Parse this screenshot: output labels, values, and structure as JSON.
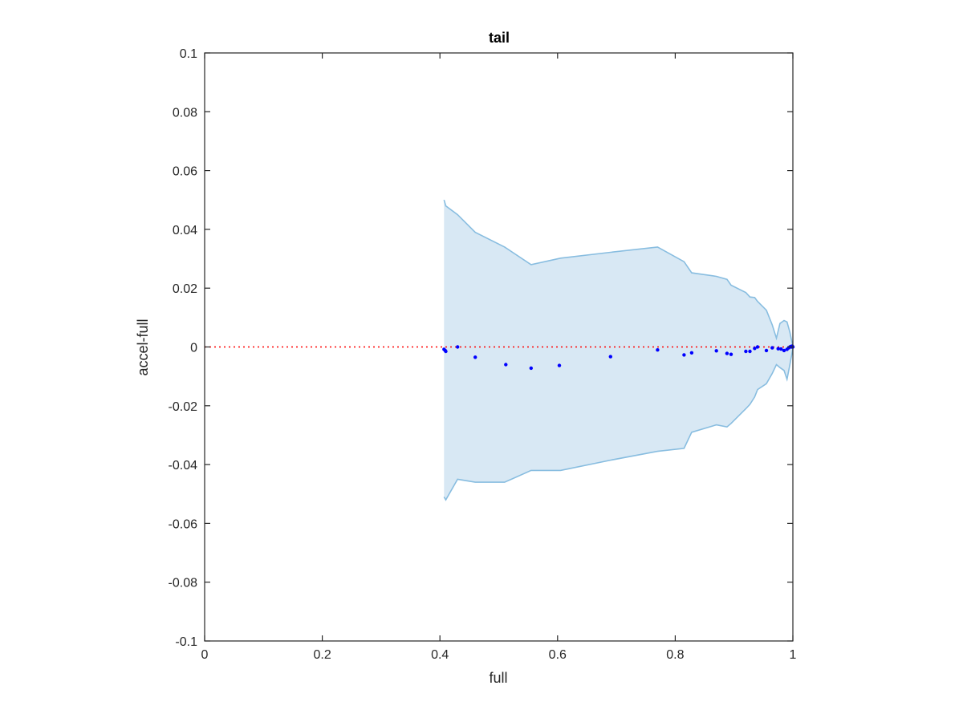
{
  "chart_data": {
    "type": "scatter",
    "title": "tail",
    "xlabel": "full",
    "ylabel": "accel-full",
    "xlim": [
      0,
      1
    ],
    "ylim": [
      -0.1,
      0.1
    ],
    "xticks": [
      0,
      0.2,
      0.4,
      0.6,
      0.8,
      1
    ],
    "xtick_labels": [
      "0",
      "0.2",
      "0.4",
      "0.6",
      "0.8",
      "1"
    ],
    "yticks": [
      -0.1,
      -0.08,
      -0.06,
      -0.04,
      -0.02,
      0,
      0.02,
      0.04,
      0.06,
      0.08,
      0.1
    ],
    "ytick_labels": [
      "-0.1",
      "-0.08",
      "-0.06",
      "-0.04",
      "-0.02",
      "0",
      "0.02",
      "0.04",
      "0.06",
      "0.08",
      "0.1"
    ],
    "grid": false,
    "colors": {
      "points": "#0000ff",
      "band_fill": "#d8e8f4",
      "band_edge": "#88bde0",
      "zero_line": "#ff0000",
      "axes": "#262626"
    },
    "reference_line": {
      "y": 0,
      "style": "dotted"
    },
    "band": {
      "x": [
        0.407,
        0.41,
        0.43,
        0.46,
        0.51,
        0.555,
        0.605,
        0.69,
        0.77,
        0.815,
        0.828,
        0.87,
        0.888,
        0.895,
        0.92,
        0.927,
        0.935,
        0.94,
        0.955,
        0.965,
        0.972,
        0.978,
        0.985,
        0.99,
        0.995,
        1.0
      ],
      "upper": [
        0.05,
        0.048,
        0.045,
        0.039,
        0.034,
        0.028,
        0.0302,
        0.0322,
        0.034,
        0.029,
        0.0252,
        0.024,
        0.023,
        0.021,
        0.0185,
        0.017,
        0.0168,
        0.0155,
        0.0125,
        0.0075,
        0.003,
        0.008,
        0.009,
        0.0085,
        0.005,
        0.0002
      ],
      "lower": [
        -0.051,
        -0.052,
        -0.045,
        -0.046,
        -0.046,
        -0.042,
        -0.042,
        -0.0385,
        -0.0355,
        -0.0345,
        -0.029,
        -0.0265,
        -0.0272,
        -0.026,
        -0.021,
        -0.0195,
        -0.017,
        -0.0145,
        -0.0125,
        -0.009,
        -0.006,
        -0.007,
        -0.008,
        -0.011,
        -0.006,
        -0.0005
      ]
    },
    "series": [
      {
        "x": [
          0.407,
          0.409,
          0.41,
          0.43,
          0.46,
          0.512,
          0.555,
          0.603,
          0.69,
          0.77,
          0.815,
          0.828,
          0.87,
          0.888,
          0.895,
          0.92,
          0.927,
          0.935,
          0.94,
          0.955,
          0.965,
          0.975,
          0.98,
          0.985,
          0.99,
          0.993,
          0.995,
          0.997,
          0.998,
          0.999,
          1.0
        ],
        "y": [
          -0.0008,
          -0.0012,
          -0.0015,
          0.0,
          -0.0035,
          -0.006,
          -0.0072,
          -0.0063,
          -0.0033,
          -0.001,
          -0.0027,
          -0.002,
          -0.0013,
          -0.0022,
          -0.0025,
          -0.0015,
          -0.0015,
          -0.0005,
          0.0,
          -0.0012,
          -0.0003,
          -0.0006,
          -0.0007,
          -0.0012,
          -0.0008,
          -0.0003,
          0.0,
          0.0002,
          0.0,
          0.0003,
          0.0
        ]
      }
    ]
  }
}
